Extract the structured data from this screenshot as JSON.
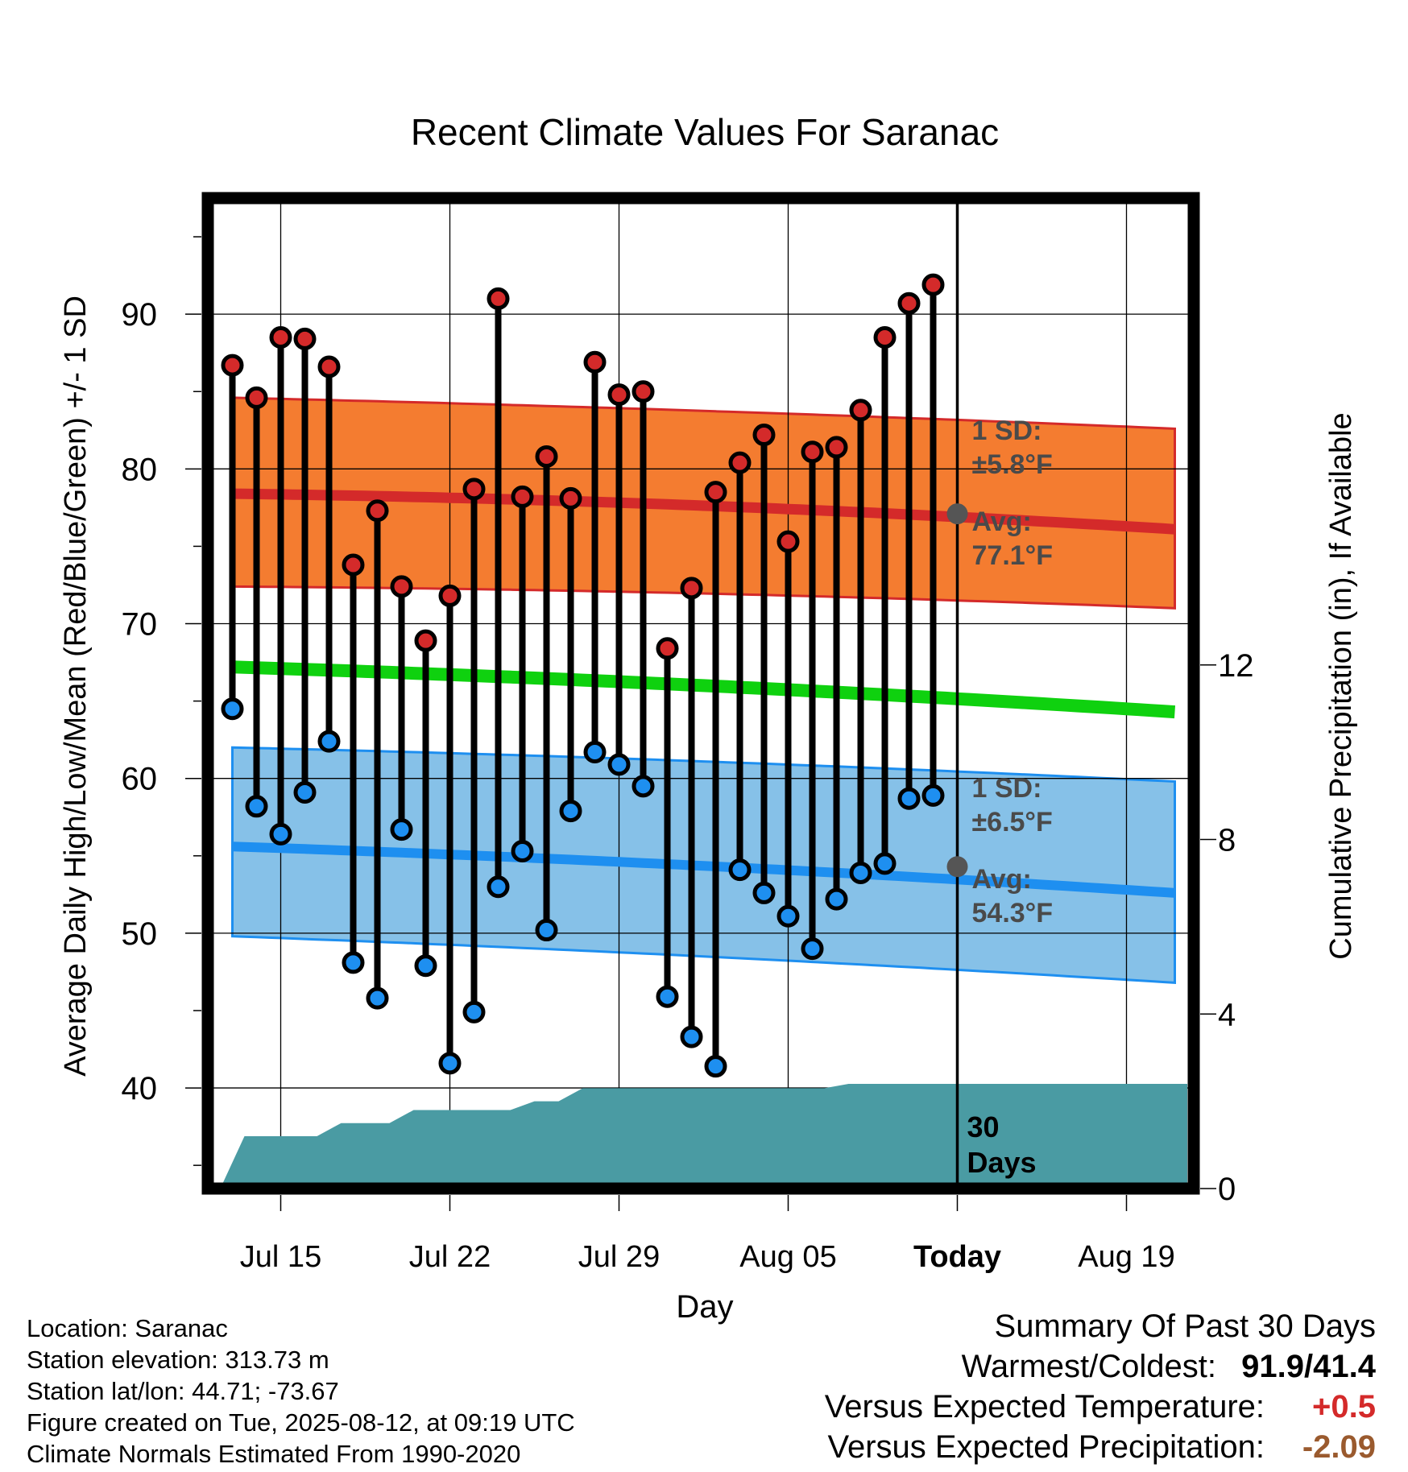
{
  "chart_data": {
    "type": "line",
    "title": "Recent Climate Values For Saranac",
    "xlabel": "Day",
    "ylabel": "Average Daily High/Low/Mean (Red/Blue/Green) +/- 1 SD",
    "y2label": "Cumulative Precipitation (in), If Available",
    "ylim": [
      33.5,
      97.5
    ],
    "y2lim": [
      0,
      22.7
    ],
    "y_ticks": [
      "40",
      "50",
      "60",
      "70",
      "80",
      "90"
    ],
    "y2_ticks": [
      "0",
      "4",
      "8",
      "12"
    ],
    "x_tick_labels": [
      "Jul 15",
      "Jul 22",
      "Jul 29",
      "Aug 05",
      "Today",
      "Aug 19"
    ],
    "grid": true,
    "days": [
      "Jul 13",
      "Jul 14",
      "Jul 15",
      "Jul 16",
      "Jul 17",
      "Jul 18",
      "Jul 19",
      "Jul 20",
      "Jul 21",
      "Jul 22",
      "Jul 23",
      "Jul 24",
      "Jul 25",
      "Jul 26",
      "Jul 27",
      "Jul 28",
      "Jul 29",
      "Jul 30",
      "Jul 31",
      "Aug 01",
      "Aug 02",
      "Aug 03",
      "Aug 04",
      "Aug 05",
      "Aug 06",
      "Aug 07",
      "Aug 08",
      "Aug 09",
      "Aug 10",
      "Aug 11"
    ],
    "series": [
      {
        "name": "High",
        "color": "#d42a2a",
        "values": [
          86.7,
          84.6,
          88.5,
          88.4,
          86.6,
          73.8,
          77.3,
          72.4,
          68.9,
          71.8,
          78.7,
          91.0,
          78.2,
          80.8,
          78.1,
          86.9,
          84.8,
          85.0,
          68.4,
          72.3,
          78.5,
          80.4,
          82.2,
          75.3,
          81.1,
          81.4,
          83.8,
          88.5,
          90.7,
          91.9
        ]
      },
      {
        "name": "Low",
        "color": "#1e8ff0",
        "values": [
          64.5,
          58.2,
          56.4,
          59.1,
          62.4,
          48.1,
          45.8,
          56.7,
          47.9,
          41.6,
          44.9,
          53.0,
          55.3,
          50.2,
          57.9,
          61.7,
          60.9,
          59.5,
          45.9,
          43.3,
          41.4,
          54.1,
          52.6,
          51.1,
          49.0,
          52.2,
          53.9,
          54.5,
          58.7,
          58.9
        ]
      }
    ],
    "normals": {
      "high_avg": {
        "start": 78.4,
        "mid": 77.8,
        "today": 77.1,
        "end": 76.1
      },
      "high_sd_band": {
        "upper_start": 84.6,
        "upper_end": 82.6,
        "lower_start": 72.4,
        "lower_end": 71.0
      },
      "mean_avg": {
        "start": 67.2,
        "today": 65.8,
        "end": 64.3
      },
      "low_avg": {
        "start": 55.6,
        "today": 54.3,
        "end": 52.6
      },
      "low_sd_band": {
        "upper_start": 62.0,
        "upper_end": 59.8,
        "lower_start": 49.8,
        "lower_end": 46.8
      }
    },
    "precipitation": {
      "color": "#4a9ba3",
      "days": [
        "Jul 12",
        "Jul 13",
        "Jul 14",
        "Jul 15",
        "Jul 16",
        "Jul 17",
        "Jul 18",
        "Jul 19",
        "Jul 20",
        "Jul 21",
        "Jul 22",
        "Jul 23",
        "Jul 24",
        "Jul 25",
        "Jul 26",
        "Jul 27",
        "Jul 28",
        "Jul 29",
        "Jul 30",
        "Jul 31",
        "Aug 01",
        "Aug 02",
        "Aug 03",
        "Aug 04",
        "Aug 05",
        "Aug 06",
        "Aug 07",
        "Aug 08",
        "Aug 09",
        "Aug 10",
        "Aug 11"
      ],
      "values": [
        0.0,
        1.2,
        1.2,
        1.2,
        1.2,
        1.5,
        1.5,
        1.5,
        1.8,
        1.8,
        1.8,
        1.8,
        1.8,
        2.0,
        2.0,
        2.3,
        2.3,
        2.3,
        2.3,
        2.3,
        2.3,
        2.3,
        2.3,
        2.3,
        2.3,
        2.3,
        2.4,
        2.4,
        2.4,
        2.4,
        2.4
      ]
    },
    "annotations": {
      "high_sd": [
        "1 SD:",
        "±5.8°F"
      ],
      "high_avg": [
        "Avg:",
        "77.1°F"
      ],
      "low_sd": [
        "1 SD:",
        "±6.5°F"
      ],
      "low_avg": [
        "Avg:",
        "54.3°F"
      ],
      "precip_label": [
        "30",
        "Days"
      ]
    }
  },
  "footer": {
    "location": "Location: Saranac",
    "elevation": "Station elevation: 313.73 m",
    "latlon": "Station lat/lon: 44.71; -73.67",
    "created": "Figure created on Tue, 2025-08-12, at 09:19 UTC",
    "normals": "Climate Normals Estimated From 1990-2020"
  },
  "summary": {
    "title": "Summary Of Past 30 Days",
    "warmest_label": "Warmest/Coldest:",
    "warmest_value": "91.9/41.4",
    "temp_label": "Versus Expected Temperature:",
    "temp_value": "+0.5",
    "temp_color": "#d42a2a",
    "precip_label": "Versus Expected Precipitation:",
    "precip_value": "-2.09",
    "precip_color": "#9a5a2e"
  }
}
